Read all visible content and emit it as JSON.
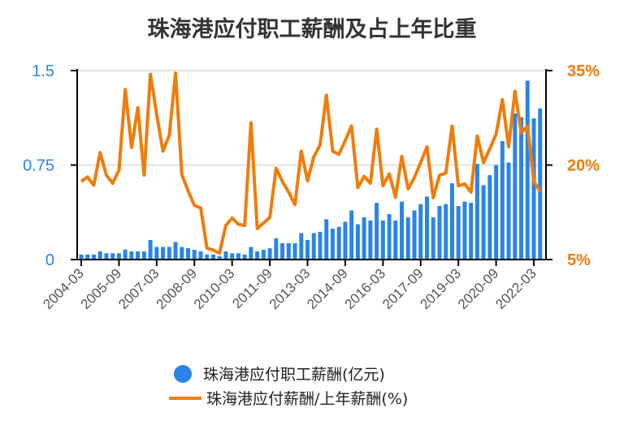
{
  "chart_data": {
    "type": "bar+line",
    "title": "珠海港应付职工薪酬及占上年比重",
    "categories": [
      "2004-03",
      "2004-06",
      "2004-09",
      "2004-12",
      "2005-03",
      "2005-06",
      "2005-09",
      "2005-12",
      "2006-03",
      "2006-06",
      "2006-09",
      "2006-12",
      "2007-03",
      "2007-06",
      "2007-09",
      "2007-12",
      "2008-03",
      "2008-06",
      "2008-09",
      "2008-12",
      "2009-03",
      "2009-06",
      "2009-09",
      "2009-12",
      "2010-03",
      "2010-06",
      "2010-09",
      "2010-12",
      "2011-03",
      "2011-06",
      "2011-09",
      "2011-12",
      "2012-03",
      "2012-06",
      "2012-09",
      "2012-12",
      "2013-03",
      "2013-06",
      "2013-09",
      "2013-12",
      "2014-03",
      "2014-06",
      "2014-09",
      "2014-12",
      "2015-03",
      "2015-06",
      "2015-09",
      "2015-12",
      "2016-03",
      "2016-06",
      "2016-09",
      "2016-12",
      "2017-03",
      "2017-06",
      "2017-09",
      "2017-12",
      "2018-03",
      "2018-06",
      "2018-09",
      "2018-12",
      "2019-03",
      "2019-06",
      "2019-09",
      "2019-12",
      "2020-03",
      "2020-06",
      "2020-09",
      "2020-12",
      "2021-03",
      "2021-06",
      "2021-09",
      "2021-12",
      "2022-03",
      "2022-06"
    ],
    "x_tick_labels": [
      "2004-03",
      "2005-09",
      "2007-03",
      "2008-09",
      "2010-03",
      "2011-09",
      "2013-03",
      "2014-09",
      "2016-03",
      "2017-09",
      "2019-03",
      "2020-09",
      "2022-03"
    ],
    "series": [
      {
        "name": "珠海港应付职工薪酬(亿元)",
        "type": "bar",
        "axis": "left",
        "color": "#2a84e8",
        "values": [
          0.04,
          0.04,
          0.04,
          0.065,
          0.05,
          0.05,
          0.05,
          0.08,
          0.065,
          0.065,
          0.065,
          0.155,
          0.1,
          0.1,
          0.1,
          0.14,
          0.1,
          0.09,
          0.077,
          0.065,
          0.04,
          0.04,
          0.026,
          0.065,
          0.05,
          0.05,
          0.04,
          0.1,
          0.065,
          0.077,
          0.09,
          0.17,
          0.13,
          0.13,
          0.13,
          0.21,
          0.155,
          0.21,
          0.22,
          0.32,
          0.245,
          0.26,
          0.3,
          0.39,
          0.28,
          0.335,
          0.31,
          0.45,
          0.31,
          0.36,
          0.31,
          0.46,
          0.335,
          0.39,
          0.44,
          0.5,
          0.335,
          0.425,
          0.44,
          0.605,
          0.425,
          0.46,
          0.45,
          0.76,
          0.59,
          0.67,
          0.75,
          0.94,
          0.77,
          1.16,
          1.13,
          1.42,
          1.12,
          1.2
        ]
      },
      {
        "name": "珠海港应付薪酬/上年薪酬(%)",
        "type": "line",
        "axis": "right",
        "color": "#f07c0a",
        "values": [
          17.4,
          18.1,
          16.8,
          22.0,
          18.4,
          17.1,
          19.2,
          32.0,
          22.8,
          29.1,
          18.4,
          34.4,
          28.0,
          22.2,
          24.7,
          34.6,
          18.5,
          15.9,
          13.6,
          13.2,
          6.8,
          6.5,
          6.0,
          10.4,
          11.6,
          10.6,
          10.4,
          26.7,
          9.9,
          10.8,
          11.7,
          19.5,
          17.4,
          15.7,
          13.7,
          22.2,
          17.5,
          21.3,
          23.2,
          31.1,
          22.2,
          21.7,
          23.9,
          26.2,
          16.4,
          18.2,
          17.1,
          25.7,
          16.7,
          18.6,
          14.9,
          21.4,
          16.2,
          18.0,
          20.4,
          22.9,
          14.8,
          18.4,
          18.7,
          26.2,
          16.7,
          17.0,
          15.7,
          24.6,
          20.4,
          22.6,
          24.9,
          30.4,
          22.9,
          31.7,
          25.1,
          26.2,
          17.4,
          15.8
        ]
      }
    ],
    "left_axis": {
      "range": [
        0,
        1.5
      ],
      "tick_labels": [
        "0",
        "0.75",
        "1.5"
      ],
      "color": "#2a84e8"
    },
    "right_axis": {
      "range": [
        5,
        35
      ],
      "tick_labels": [
        "5%",
        "20%",
        "35%"
      ],
      "color": "#f07c0a"
    },
    "grid": true,
    "legend_position": "bottom"
  }
}
